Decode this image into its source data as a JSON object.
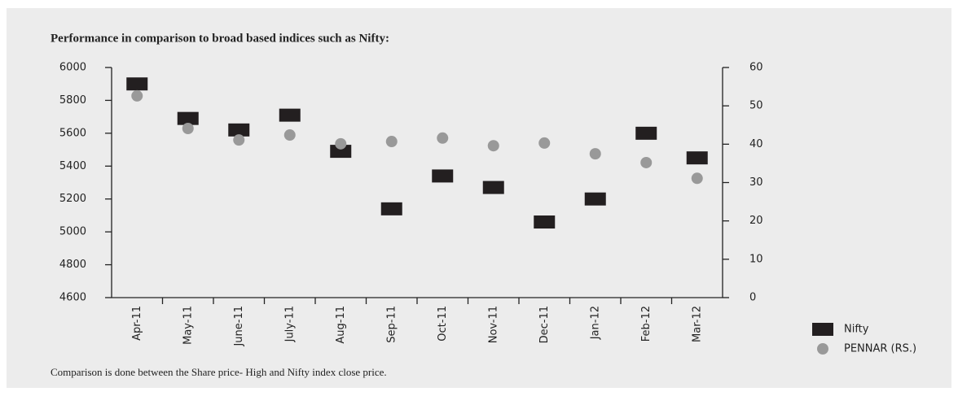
{
  "chart_data": {
    "type": "scatter",
    "title": "Performance in comparison to broad based indices such as Nifty:",
    "note": "Comparison is done between the Share price- High and Nifty index close price.",
    "categories": [
      "Apr-11",
      "May-11",
      "June-11",
      "July-11",
      "Aug-11",
      "Sep-11",
      "Oct-11",
      "Nov-11",
      "Dec-11",
      "Jan-12",
      "Feb-12",
      "Mar-12"
    ],
    "series": [
      {
        "name": "Nifty",
        "color": "#231f20",
        "marker": "square",
        "values": [
          5900,
          5690,
          5620,
          5710,
          5490,
          5140,
          5340,
          5270,
          5060,
          5200,
          5600,
          5450
        ]
      },
      {
        "name": "PENNAR (RS.)",
        "color": "#999999",
        "marker": "circle",
        "axis": "y2",
        "values": [
          52.6,
          44.1,
          41.1,
          42.4,
          40.1,
          40.7,
          41.6,
          39.6,
          40.3,
          37.5,
          35.2,
          31.1
        ]
      }
    ],
    "ylim": [
      4600,
      6000
    ],
    "yticks": [
      4600,
      4800,
      5000,
      5200,
      5400,
      5600,
      5800,
      6000
    ],
    "y2lim": [
      0,
      60
    ],
    "y2ticks": [
      0,
      10,
      20,
      30,
      40,
      50,
      60
    ]
  }
}
